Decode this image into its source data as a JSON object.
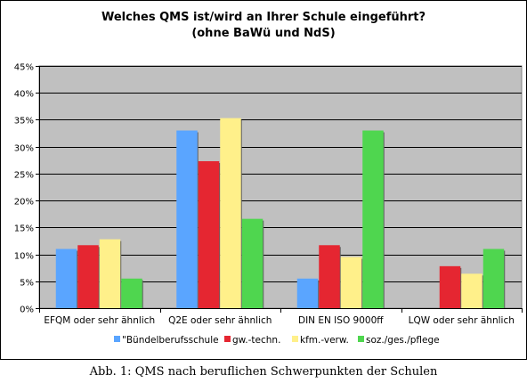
{
  "chart_data": {
    "type": "bar",
    "title": [
      "Welches QMS ist/wird an Ihrer Schule eingeführt?",
      "(ohne BaWü und NdS)"
    ],
    "categories": [
      "EFQM oder sehr ähnlich",
      "Q2E oder sehr ähnlich",
      "DIN EN ISO 9000ff",
      "LQW oder sehr ähnlich"
    ],
    "series": [
      {
        "name": "\"Bündelberufsschule",
        "color": "#5aa5ff",
        "values": [
          11,
          33,
          5.5,
          0
        ]
      },
      {
        "name": "gw.-techn.",
        "color": "#e52631",
        "values": [
          11.7,
          27.3,
          11.7,
          7.8
        ]
      },
      {
        "name": "kfm.-verw.",
        "color": "#fff08a",
        "values": [
          12.8,
          35.3,
          9.5,
          6.4
        ]
      },
      {
        "name": "soz./ges./pflege",
        "color": "#4fd64f",
        "values": [
          5.5,
          16.6,
          33,
          11
        ]
      }
    ],
    "ylim": [
      0,
      45
    ],
    "yticks": [
      "0%",
      "5%",
      "10%",
      "15%",
      "20%",
      "25%",
      "30%",
      "35%",
      "40%",
      "45%"
    ],
    "ytick_values": [
      0,
      5,
      10,
      15,
      20,
      25,
      30,
      35,
      40,
      45
    ],
    "grid": true,
    "plot_background": "#c0c0c0",
    "legend_position": "bottom",
    "xlabel": "",
    "ylabel": ""
  },
  "caption": "Abb. 1: QMS nach beruflichen Schwerpunkten der Schulen"
}
